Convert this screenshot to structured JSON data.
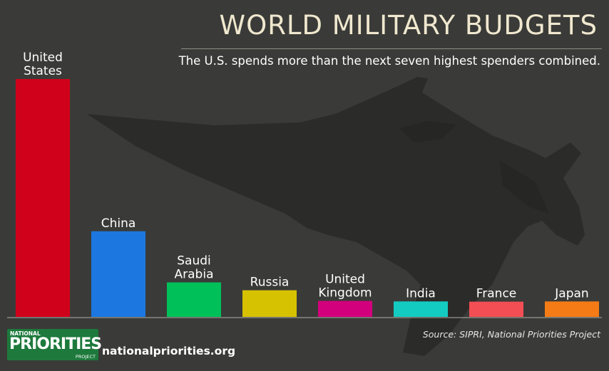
{
  "header": {
    "title": "WORLD MILITARY BUDGETS",
    "subtitle": "The U.S. spends more than the next seven highest spenders combined."
  },
  "footer": {
    "source": "Source: SIPRI, National Priorities Project",
    "site": "nationalpriorities.org",
    "logo": {
      "line1": "NATIONAL",
      "line2": "PRIORITIES",
      "line3": "PROJECT"
    }
  },
  "chart_data": {
    "type": "bar",
    "title": "WORLD MILITARY BUDGETS",
    "subtitle": "The U.S. spends more than the next seven highest spenders combined.",
    "categories": [
      [
        "United",
        "States"
      ],
      [
        "China"
      ],
      [
        "Saudi",
        "Arabia"
      ],
      [
        "Russia"
      ],
      [
        "United",
        "Kingdom"
      ],
      [
        "India"
      ],
      [
        "France"
      ],
      [
        "Japan"
      ]
    ],
    "values": [
      100,
      36,
      14.5,
      11.2,
      6.7,
      6.5,
      6.4,
      6.5
    ],
    "value_unit": "percent of U.S. spending (estimated from bar heights)",
    "colors": [
      "#d0021b",
      "#1c78e0",
      "#00c05a",
      "#d6c200",
      "#d3007d",
      "#14cbc2",
      "#f44e55",
      "#f47b16"
    ],
    "axes_shown": false,
    "grid": false,
    "legend": "none"
  },
  "background": {
    "color": "#3a3b38",
    "silhouette": "fighter-jet-silhouette",
    "silhouette_color": "#2b2b29"
  }
}
